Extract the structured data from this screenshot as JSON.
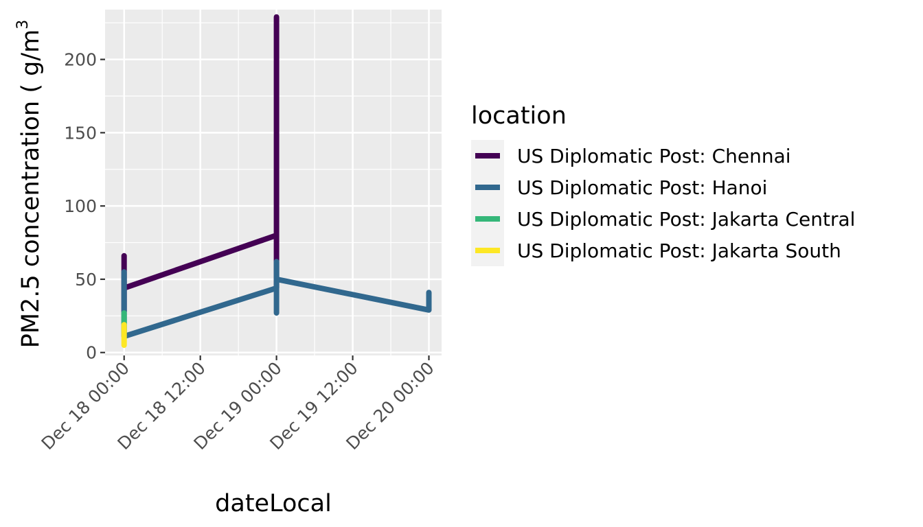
{
  "chart_data": {
    "type": "line",
    "xlabel": "dateLocal",
    "ylabel": "PM2.5 concentration ( g/m",
    "ylabel_sup": "3",
    "ylim": [
      -2,
      234
    ],
    "xlim": [
      "2017-12-17T21:00",
      "2017-12-20T02:00"
    ],
    "y_ticks": [
      0,
      50,
      100,
      150,
      200
    ],
    "y_tick_labels": [
      "0",
      "50",
      "100",
      "150",
      "200"
    ],
    "x_ticks": [
      "2017-12-18T00:00",
      "2017-12-18T12:00",
      "2017-12-19T00:00",
      "2017-12-19T12:00",
      "2017-12-20T00:00"
    ],
    "x_tick_labels": [
      "Dec 18 00:00",
      "Dec 18 12:00",
      "Dec 19 00:00",
      "Dec 19 12:00",
      "Dec 20 00:00"
    ],
    "grid": true,
    "legend": {
      "title": "location",
      "position": "right"
    },
    "series": [
      {
        "name": "US Diplomatic Post: Chennai",
        "color": "#440154",
        "x": [
          "2017-12-18T00:00",
          "2017-12-18T00:00",
          "2017-12-18T00:00",
          "2017-12-19T00:00",
          "2017-12-19T00:00",
          "2017-12-19T00:00"
        ],
        "y": [
          66,
          28,
          44,
          80,
          229,
          44
        ]
      },
      {
        "name": "US Diplomatic Post: Hanoi",
        "color": "#31688e",
        "x": [
          "2017-12-18T00:00",
          "2017-12-18T00:00",
          "2017-12-18T00:00",
          "2017-12-19T00:00",
          "2017-12-19T00:00",
          "2017-12-19T00:00",
          "2017-12-19T00:00",
          "2017-12-20T00:00",
          "2017-12-20T00:00"
        ],
        "y": [
          55,
          22,
          11,
          44,
          27,
          62,
          50,
          29,
          41
        ]
      },
      {
        "name": "US Diplomatic Post: Jakarta Central",
        "color": "#35b779",
        "x": [
          "2017-12-18T00:00",
          "2017-12-18T00:00",
          "2017-12-18T00:00"
        ],
        "y": [
          27,
          14,
          21
        ]
      },
      {
        "name": "US Diplomatic Post: Jakarta South",
        "color": "#fde725",
        "x": [
          "2017-12-18T00:00",
          "2017-12-18T00:00",
          "2017-12-18T00:00"
        ],
        "y": [
          19,
          5,
          12
        ]
      }
    ]
  }
}
